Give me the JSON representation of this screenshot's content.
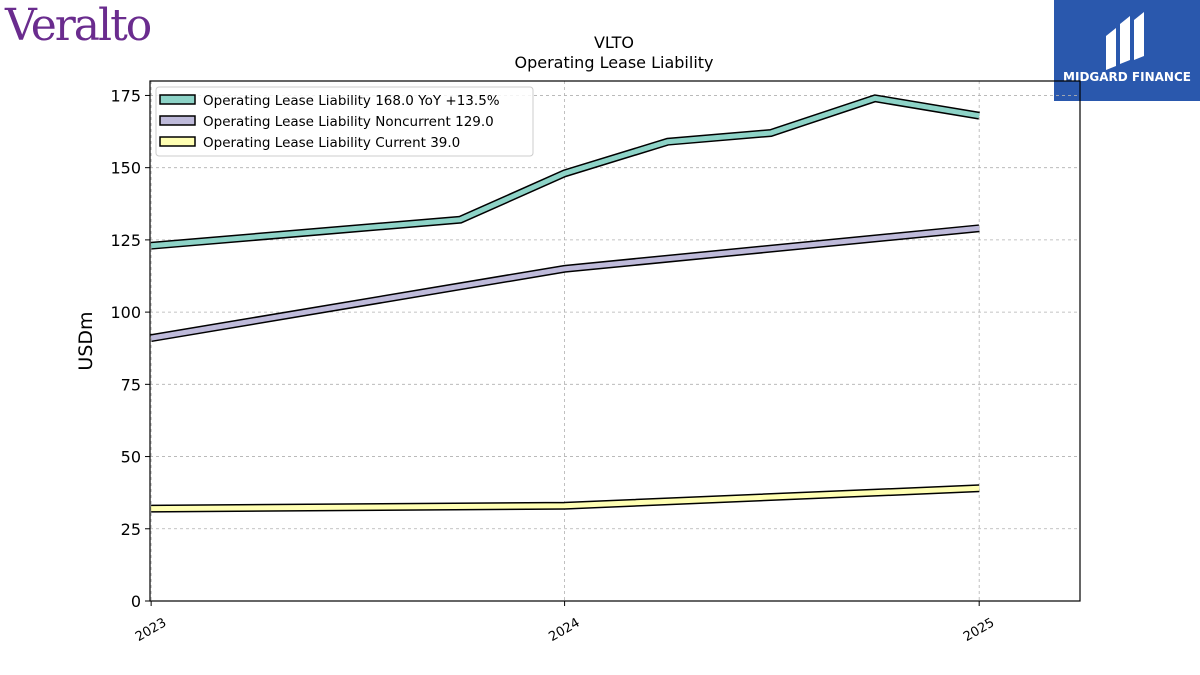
{
  "logos": {
    "left_text": "Veralto",
    "right_text": "MIDGARD FINANCE",
    "right_bg": "#2a58ad",
    "left_color": "#6a2c8e"
  },
  "chart_data": {
    "type": "line",
    "title": "VLTO",
    "subtitle": "Operating Lease Liability",
    "ylabel": "USDm",
    "xlabel": "",
    "ylim": [
      0,
      180
    ],
    "yticks": [
      0,
      25,
      50,
      75,
      100,
      125,
      150,
      175
    ],
    "xticks": [
      "2023",
      "2024",
      "2025"
    ],
    "xlim": [
      "2022-12-31",
      "2025-03-31"
    ],
    "grid": true,
    "legend_position": "top-left",
    "series": [
      {
        "name": "Operating Lease Liability  168.0 YoY +13.5%",
        "color": "#8dd3c7",
        "points": [
          [
            "2023-01-01",
            123
          ],
          [
            "2023-10-01",
            132
          ],
          [
            "2024-01-01",
            148
          ],
          [
            "2024-04-01",
            159
          ],
          [
            "2024-07-01",
            162
          ],
          [
            "2024-10-01",
            174
          ],
          [
            "2025-01-01",
            168
          ]
        ]
      },
      {
        "name": "Operating Lease Liability Noncurrent  129.0",
        "color": "#bebada",
        "points": [
          [
            "2023-01-01",
            91
          ],
          [
            "2024-01-01",
            115
          ],
          [
            "2025-01-01",
            129
          ]
        ]
      },
      {
        "name": "Operating Lease Liability Current  39.0",
        "color": "#ffffb3",
        "points": [
          [
            "2023-01-01",
            32
          ],
          [
            "2024-01-01",
            33
          ],
          [
            "2025-01-01",
            39
          ]
        ]
      }
    ]
  }
}
